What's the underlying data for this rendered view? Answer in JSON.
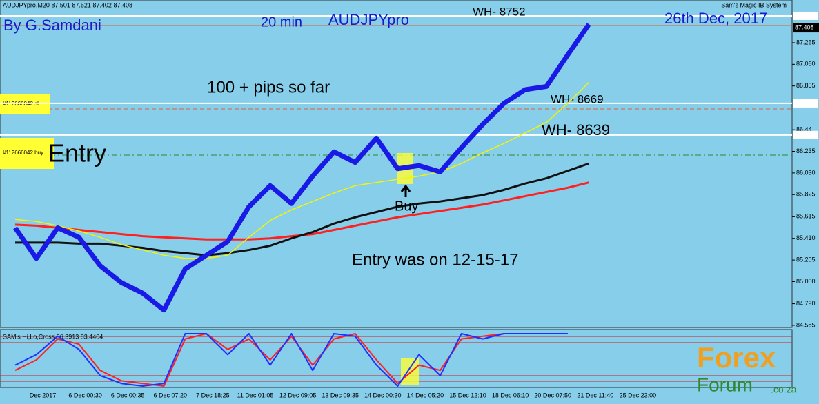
{
  "header": {
    "symbol": "AUDJPYpro,M20 87.501 87.521 87.402 87.408",
    "system": "Sam's Magic IB System"
  },
  "annotations": [
    "By G.Samdani",
    "20 min",
    "AUDJPYpro",
    "26th Dec, 2017",
    "100 + pips so far",
    "Entry",
    "Buy",
    "Entry was on 12-15-17"
  ],
  "orders": [
    "#112666042 sl",
    "#112666042 buy"
  ],
  "watermark": {
    "brand": "Forex",
    "forum": "Forum",
    "domain": ".co.za"
  },
  "chart_data": [
    {
      "type": "line",
      "last_price": {
        "value": 87.408,
        "label": "87.408"
      },
      "categories": [
        "Dec 2017",
        null,
        "6 Dec 00:30",
        null,
        "6 Dec 00:35",
        null,
        "6 Dec 07:20",
        null,
        "7 Dec 18:25",
        null,
        "11 Dec 01:05",
        null,
        "12 Dec 09:05",
        null,
        "13 Dec 09:35",
        null,
        "14 Dec 00:30",
        null,
        "14 Dec 05:20",
        null,
        "15 Dec 12:10",
        null,
        "18 Dec 06:10",
        null,
        "20 Dec 07:50",
        null,
        "21 Dec 11:40",
        null,
        "25 Dec 23:00"
      ],
      "series": [
        {
          "color": "#ff2020",
          "values": [
            85.54,
            85.53,
            85.51,
            85.49,
            85.47,
            85.45,
            85.43,
            85.42,
            85.41,
            85.4,
            85.4,
            85.4,
            85.41,
            85.43,
            85.45,
            85.49,
            85.53,
            85.57,
            85.61,
            85.64,
            85.67,
            85.7,
            85.73,
            85.77,
            85.81,
            85.85,
            85.89,
            85.94,
            null
          ]
        },
        {
          "color": "#111111",
          "values": [
            85.37,
            85.37,
            85.37,
            85.36,
            85.36,
            85.34,
            85.32,
            85.29,
            85.27,
            85.25,
            85.27,
            85.3,
            85.34,
            85.41,
            85.47,
            85.55,
            85.61,
            85.66,
            85.71,
            85.74,
            85.76,
            85.79,
            85.82,
            85.87,
            85.93,
            85.98,
            86.05,
            86.12,
            null
          ]
        },
        {
          "color": "#f5f500",
          "values": [
            85.59,
            85.57,
            85.53,
            85.48,
            85.42,
            85.35,
            85.3,
            85.25,
            85.22,
            85.22,
            85.25,
            85.42,
            85.58,
            85.68,
            85.76,
            85.84,
            85.91,
            85.94,
            85.97,
            86.0,
            86.04,
            86.12,
            86.22,
            86.31,
            86.41,
            86.51,
            86.69,
            86.89,
            null
          ]
        },
        {
          "color": "#1a1ae6",
          "values": [
            85.51,
            85.22,
            85.51,
            85.42,
            85.15,
            84.99,
            84.89,
            84.73,
            85.12,
            85.25,
            85.38,
            85.71,
            85.91,
            85.74,
            86.0,
            86.23,
            86.13,
            86.36,
            86.07,
            86.1,
            86.04,
            86.27,
            86.49,
            86.69,
            86.82,
            86.85,
            87.15,
            87.44,
            null
          ]
        }
      ],
      "levels": [
        {
          "value": 87.52,
          "label": "WH- 8752"
        },
        {
          "value": 86.69,
          "label": "WH- 8669"
        },
        {
          "value": 86.39,
          "label": "WH- 8639"
        }
      ],
      "ylim": [
        84.565,
        87.67
      ],
      "yticks": [
        87.265,
        {
          "value": 87.06,
          "label": "87.060"
        },
        86.855,
        86.44,
        86.235,
        {
          "value": 86.03,
          "label": "86.030"
        },
        85.825,
        85.615,
        {
          "value": 85.41,
          "label": "85.410"
        },
        85.205,
        {
          "value": 85,
          "label": "85.000"
        },
        {
          "value": 84.79,
          "label": "84.790"
        },
        84.585
      ]
    },
    {
      "type": "line",
      "title": "SAM's Hi,Lo,Cross 96.3913 83.4404",
      "series": [
        {
          "color": "#ff2020",
          "values": [
            30,
            50,
            90,
            80,
            30,
            10,
            5,
            0,
            90,
            100,
            70,
            90,
            50,
            95,
            40,
            90,
            100,
            50,
            5,
            40,
            30,
            90,
            95,
            100,
            100,
            100,
            100,
            null
          ]
        },
        {
          "color": "#2030ff",
          "values": [
            40,
            60,
            95,
            70,
            20,
            5,
            0,
            5,
            100,
            100,
            60,
            100,
            40,
            100,
            30,
            100,
            95,
            40,
            0,
            60,
            20,
            100,
            90,
            100,
            100,
            100,
            100,
            null
          ]
        }
      ],
      "ylim": [
        0,
        100
      ]
    }
  ]
}
